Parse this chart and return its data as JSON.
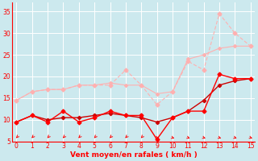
{
  "x": [
    0,
    1,
    2,
    3,
    4,
    5,
    6,
    7,
    8,
    9,
    10,
    11,
    12,
    13,
    14,
    15
  ],
  "series_pink_erratic": [
    14.5,
    16.5,
    17.0,
    17.0,
    18.0,
    18.0,
    18.0,
    21.5,
    18.0,
    13.5,
    16.5,
    23.5,
    21.5,
    34.5,
    30.0,
    27.0
  ],
  "series_pink_steady": [
    14.5,
    16.5,
    17.0,
    17.0,
    18.0,
    18.0,
    18.5,
    18.0,
    18.0,
    16.0,
    16.5,
    24.0,
    25.0,
    26.5,
    27.0,
    27.0
  ],
  "series_red_erratic": [
    9.5,
    11.0,
    9.5,
    12.0,
    9.5,
    10.5,
    12.0,
    11.0,
    11.0,
    5.5,
    10.5,
    12.0,
    12.0,
    20.5,
    19.5,
    19.5
  ],
  "series_red_trend": [
    9.5,
    11.0,
    10.0,
    10.5,
    10.5,
    11.0,
    11.5,
    11.0,
    10.5,
    9.5,
    10.5,
    12.0,
    14.5,
    18.0,
    19.0,
    19.5
  ],
  "bg_color": "#cce9ee",
  "grid_color": "#ffffff",
  "color_pink_erratic": "#ffb0b0",
  "color_pink_steady": "#ffb0b0",
  "color_red_erratic": "#ff0000",
  "color_red_trend": "#cc0000",
  "xlabel": "Vent moyen/en rafales ( km/h )",
  "ylim": [
    5,
    37
  ],
  "xlim": [
    -0.3,
    15.3
  ],
  "yticks": [
    5,
    10,
    15,
    20,
    25,
    30,
    35
  ],
  "xticks": [
    0,
    1,
    2,
    3,
    4,
    5,
    6,
    7,
    8,
    9,
    10,
    11,
    12,
    13,
    14,
    15
  ],
  "arrow_switch": 9
}
